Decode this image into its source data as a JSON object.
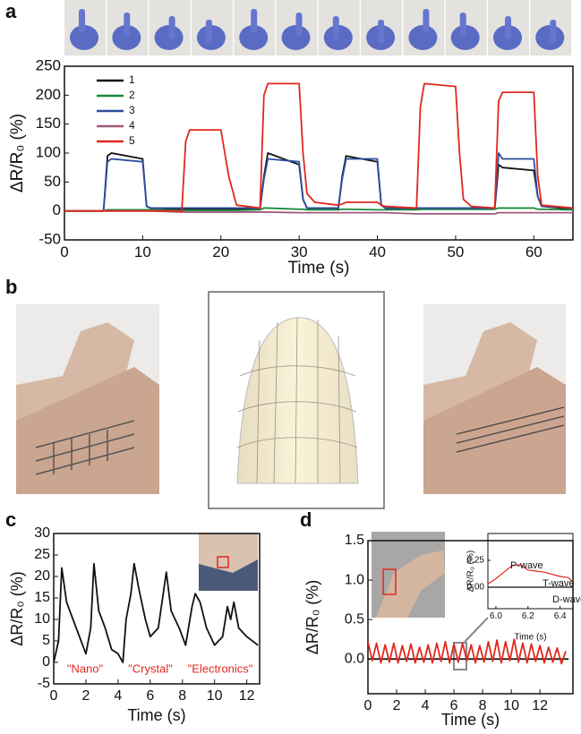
{
  "panel_labels": [
    "a",
    "b",
    "c",
    "d"
  ],
  "chart_data": [
    {
      "type": "line",
      "xlabel": "Time (s)",
      "ylabel": "ΔR/R₀ (%)",
      "xlim": [
        0,
        65
      ],
      "ylim": [
        -50,
        250
      ],
      "xticks": [
        0,
        10,
        20,
        30,
        40,
        50,
        60
      ],
      "yticks": [
        -50,
        0,
        50,
        100,
        150,
        200,
        250
      ],
      "legend": "upper left",
      "x": [
        0,
        5,
        5.5,
        6,
        10,
        10.5,
        11,
        15,
        15.5,
        16,
        20,
        21,
        22,
        25,
        25.5,
        26,
        30,
        30.5,
        31,
        32,
        35,
        35.5,
        36,
        40,
        40.5,
        41,
        45,
        45.5,
        46,
        50,
        50.5,
        51,
        52,
        55,
        55.5,
        56,
        60,
        60.5,
        61,
        65
      ],
      "series": [
        {
          "name": "1",
          "color": "#111111",
          "values": [
            0,
            0,
            95,
            100,
            90,
            8,
            5,
            3,
            3,
            3,
            3,
            3,
            3,
            3,
            60,
            100,
            80,
            20,
            5,
            3,
            3,
            60,
            95,
            85,
            10,
            5,
            3,
            3,
            3,
            3,
            3,
            3,
            3,
            3,
            80,
            75,
            70,
            25,
            8,
            3
          ]
        },
        {
          "name": "2",
          "color": "#1a8a3a",
          "values": [
            0,
            0,
            2,
            2,
            2,
            2,
            2,
            1,
            1,
            1,
            1,
            1,
            1,
            2,
            5,
            5,
            3,
            3,
            2,
            2,
            2,
            3,
            3,
            2,
            2,
            2,
            2,
            3,
            3,
            3,
            3,
            3,
            3,
            3,
            5,
            5,
            5,
            3,
            3,
            2
          ]
        },
        {
          "name": "3",
          "color": "#2d4e9c",
          "values": [
            0,
            0,
            85,
            90,
            85,
            8,
            5,
            5,
            5,
            5,
            5,
            5,
            5,
            5,
            55,
            90,
            85,
            20,
            5,
            5,
            5,
            55,
            90,
            90,
            10,
            5,
            5,
            5,
            5,
            5,
            5,
            5,
            5,
            5,
            100,
            90,
            90,
            25,
            8,
            5
          ]
        },
        {
          "name": "4",
          "color": "#a0587a",
          "values": [
            0,
            0,
            0,
            0,
            0,
            0,
            0,
            -2,
            -2,
            -2,
            -2,
            -2,
            -2,
            -2,
            -2,
            -2,
            -3,
            -3,
            -3,
            -3,
            -3,
            -3,
            -3,
            -3,
            -3,
            -3,
            -5,
            -5,
            -5,
            -5,
            -5,
            -5,
            -5,
            -5,
            -3,
            -3,
            -3,
            -3,
            -3,
            -3
          ]
        },
        {
          "name": "5",
          "color": "#e0281e",
          "values": [
            0,
            0,
            0,
            0,
            0,
            0,
            0,
            0,
            120,
            140,
            140,
            60,
            10,
            5,
            200,
            220,
            220,
            100,
            30,
            15,
            10,
            12,
            15,
            15,
            10,
            8,
            5,
            180,
            220,
            215,
            100,
            20,
            8,
            5,
            190,
            205,
            205,
            60,
            10,
            5
          ]
        }
      ]
    },
    {
      "type": "line",
      "xlabel": "Time (s)",
      "ylabel": "ΔR/R₀ (%)",
      "xlim": [
        0,
        12.8
      ],
      "ylim": [
        -5,
        30
      ],
      "xticks": [
        0,
        2,
        4,
        6,
        8,
        10,
        12
      ],
      "yticks": [
        -5,
        0,
        5,
        10,
        15,
        20,
        25,
        30
      ],
      "annotations": [
        "\"Nano\"",
        "\"Crystal\"",
        "\"Electronics\""
      ],
      "x": [
        0,
        0.3,
        0.5,
        0.8,
        1.2,
        1.6,
        2,
        2.3,
        2.5,
        2.8,
        3.2,
        3.6,
        4,
        4.3,
        4.5,
        4.8,
        5,
        5.3,
        5.7,
        6,
        6.5,
        7,
        7.3,
        7.8,
        8.2,
        8.6,
        8.8,
        9.1,
        9.5,
        10,
        10.5,
        10.8,
        11,
        11.2,
        11.5,
        12,
        12.7
      ],
      "series": [
        {
          "color": "#111111",
          "values": [
            0,
            5,
            22,
            14,
            10,
            6,
            2,
            8,
            23,
            12,
            8,
            3,
            2,
            0,
            10,
            16,
            23,
            17,
            10,
            6,
            8,
            21,
            12,
            8,
            4,
            13,
            16,
            14,
            8,
            4,
            6,
            13,
            10,
            14,
            8,
            6,
            4
          ]
        }
      ]
    },
    {
      "type": "line",
      "xlabel": "Time (s)",
      "ylabel": "ΔR/R₀ (%)",
      "xlim": [
        0,
        14.3
      ],
      "ylim": [
        -0.44,
        1.5
      ],
      "xticks": [
        0,
        2,
        4,
        6,
        8,
        10,
        12
      ],
      "yticks": [
        {
          "value": 0,
          "label": "0.0"
        },
        {
          "value": 0.5,
          "label": "0.5"
        },
        {
          "value": 1,
          "label": "1.0"
        },
        {
          "value": 1.5,
          "label": "1.5"
        }
      ],
      "series": [
        {
          "color": "#111111",
          "x": [
            0,
            14
          ],
          "values": [
            0,
            0
          ]
        },
        {
          "color": "#e0281e",
          "x": [
            0,
            0.3,
            0.6,
            0.9,
            1.2,
            1.5,
            1.8,
            2.1,
            2.4,
            2.7,
            3,
            3.3,
            3.6,
            3.9,
            4.2,
            4.5,
            4.8,
            5.1,
            5.4,
            5.7,
            6,
            6.3,
            6.6,
            6.9,
            7.2,
            7.5,
            7.8,
            8.1,
            8.4,
            8.7,
            9,
            9.3,
            9.6,
            9.9,
            10.2,
            10.5,
            10.8,
            11.1,
            11.4,
            11.7,
            12,
            12.3,
            12.6,
            12.9,
            13.2,
            13.5,
            13.8
          ],
          "values": [
            0.22,
            -0.02,
            0.2,
            -0.05,
            0.18,
            -0.04,
            0.2,
            -0.05,
            0.17,
            -0.03,
            0.19,
            -0.05,
            0.15,
            -0.04,
            0.18,
            -0.05,
            0.2,
            -0.03,
            0.22,
            -0.05,
            0.19,
            -0.04,
            0.2,
            -0.02,
            0.18,
            -0.05,
            0.17,
            -0.04,
            0.22,
            -0.03,
            0.24,
            -0.05,
            0.22,
            -0.02,
            0.25,
            -0.04,
            0.2,
            -0.05,
            0.19,
            -0.03,
            0.17,
            -0.05,
            0.15,
            -0.04,
            0.14,
            -0.06,
            0.1
          ]
        }
      ]
    },
    {
      "type": "line",
      "xlabel": "Time (s)",
      "ylabel": "ΔR/R₀ (%)",
      "xlim": [
        5.95,
        6.48
      ],
      "ylim": [
        -0.2,
        0.5
      ],
      "xticks": [
        {
          "value": 6,
          "label": "6.0"
        },
        6.2,
        6.4
      ],
      "yticks": [
        {
          "value": 0,
          "label": "0.00"
        },
        {
          "value": 0.25,
          "label": "0.25"
        }
      ],
      "annotations": [
        "P-wave",
        "T-wave",
        "D-wave"
      ],
      "series": [
        {
          "color": "#111111",
          "x": [
            5.95,
            6.48
          ],
          "values": [
            0,
            0
          ]
        },
        {
          "color": "#e0281e",
          "x": [
            5.95,
            6.0,
            6.05,
            6.1,
            6.15,
            6.2,
            6.25,
            6.3,
            6.35,
            6.4,
            6.45,
            6.48
          ],
          "values": [
            0.03,
            0.08,
            0.14,
            0.2,
            0.21,
            0.16,
            0.15,
            0.14,
            0.12,
            0.1,
            0.09,
            0.05
          ]
        }
      ]
    }
  ]
}
